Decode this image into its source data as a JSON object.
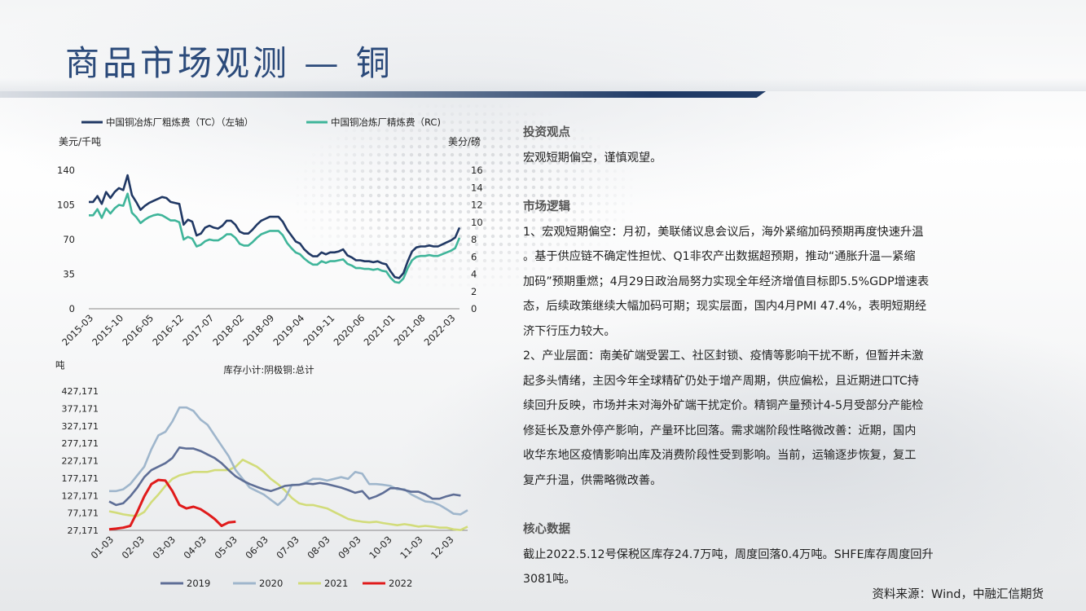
{
  "page": {
    "title": "商品市场观测 — 铜",
    "source": "资料来源：Wind，中融汇信期货"
  },
  "colors": {
    "title": "#2b4a7a",
    "tc": "#203864",
    "rc": "#3fb59a",
    "y2019": "#5e6e96",
    "y2020": "#9fb6cc",
    "y2021": "#d2dc7a",
    "y2022": "#e01b1b"
  },
  "panel": {
    "view_heading": "投资观点",
    "view_text": "宏观短期偏空，谨慎观望。",
    "logic_heading": "市场逻辑",
    "logic_lines": [
      "1、宏观短期偏空：月初，美联储议息会议后，海外紧缩加码预期再度快速升温",
      "。基于供应链不确定性担忧、Q1非农产出数据超预期，推动“通胀升温—紧缩",
      "加码”预期重燃；4月29日政治局努力实现全年经济增值目标即5.5%GDP增速表",
      "态，后续政策继续大幅加码可期；现实层面，国内4月PMI 47.4%，表明短期经",
      "济下行压力较大。",
      "2、产业层面：南美矿端受罢工、社区封锁、疫情等影响干扰不断，但暂并未激",
      "起多头情绪，主因今年全球精矿仍处于增产周期，供应偏松，且近期进口TC持",
      "续回升反映，市场并未对海外矿端干扰定价。精铜产量预计4-5月受部分产能检",
      "修延长及意外停产影响，产量环比回落。需求端阶段性略微改善：近期，国内",
      "收华东地区疫情影响出库及消费阶段性受到影响。当前，运输逐步恢复，复工",
      "复产升温，供需略微改善。"
    ],
    "core_heading": "核心数据",
    "core_lines": [
      "截止2022.5.12号保税区库存24.7万吨，周度回落0.4万吨。SHFE库存周度回升",
      "3081吨。"
    ]
  },
  "chart_data": [
    {
      "type": "line",
      "legend": [
        "中国铜冶炼厂粗炼费（TC）（左轴）",
        "中国铜冶炼厂精炼费（RC)"
      ],
      "ylabel_left": "美元/千吨",
      "ylabel_right": "美分/磅",
      "ylim_left": [
        0,
        140
      ],
      "ylim_right": [
        0,
        16
      ],
      "yticks_left": [
        "0",
        "35",
        "70",
        "105",
        "140"
      ],
      "yticks_right": [
        "0",
        "2",
        "4",
        "6",
        "8",
        "10",
        "12",
        "14",
        "16"
      ],
      "x_ticks": [
        "2015-03",
        "2015-10",
        "2016-05",
        "2016-12",
        "2017-07",
        "2018-02",
        "2018-09",
        "2019-04",
        "2019-11",
        "2020-06",
        "2021-01",
        "2021-08",
        "2022-03"
      ],
      "x_range": [
        0,
        86
      ],
      "series": [
        {
          "name": "中国铜冶炼厂粗炼费（TC）（左轴）",
          "axis": "left",
          "x": [
            0,
            1,
            2,
            3,
            4,
            5,
            6,
            7,
            8,
            9,
            10,
            11,
            12,
            13,
            14,
            15,
            16,
            17,
            18,
            19,
            20,
            21,
            22,
            23,
            24,
            25,
            26,
            27,
            28,
            29,
            30,
            31,
            32,
            33,
            34,
            35,
            36,
            37,
            38,
            39,
            40,
            41,
            42,
            43,
            44,
            45,
            46,
            47,
            48,
            49,
            50,
            51,
            52,
            53,
            54,
            55,
            56,
            57,
            58,
            59,
            60,
            61,
            62,
            63,
            64,
            65,
            66,
            67,
            68,
            69,
            70,
            71,
            72,
            73,
            74,
            75,
            76,
            77,
            78,
            79,
            80,
            81,
            82,
            83,
            84,
            85,
            86
          ],
          "values": [
            108,
            108,
            114,
            106,
            118,
            112,
            118,
            122,
            120,
            135,
            115,
            108,
            100,
            104,
            107,
            109,
            111,
            113,
            112,
            108,
            107,
            106,
            85,
            90,
            88,
            74,
            76,
            82,
            84,
            82,
            81,
            84,
            89,
            89,
            85,
            78,
            76,
            76,
            80,
            85,
            89,
            91,
            93,
            93,
            93,
            88,
            80,
            74,
            68,
            66,
            60,
            56,
            53,
            53,
            57,
            55,
            57,
            57,
            58,
            60,
            54,
            52,
            49,
            49,
            48,
            48,
            47,
            48,
            46,
            45,
            38,
            32,
            31,
            36,
            48,
            58,
            62,
            63,
            63,
            64,
            63,
            63,
            65,
            67,
            69,
            72,
            82
          ]
        },
        {
          "name": "中国铜冶炼厂精炼费（RC)",
          "axis": "right",
          "x": [
            0,
            1,
            2,
            3,
            4,
            5,
            6,
            7,
            8,
            9,
            10,
            11,
            12,
            13,
            14,
            15,
            16,
            17,
            18,
            19,
            20,
            21,
            22,
            23,
            24,
            25,
            26,
            27,
            28,
            29,
            30,
            31,
            32,
            33,
            34,
            35,
            36,
            37,
            38,
            39,
            40,
            41,
            42,
            43,
            44,
            45,
            46,
            47,
            48,
            49,
            50,
            51,
            52,
            53,
            54,
            55,
            56,
            57,
            58,
            59,
            60,
            61,
            62,
            63,
            64,
            65,
            66,
            67,
            68,
            69,
            70,
            71,
            72,
            73,
            74,
            75,
            76,
            77,
            78,
            79,
            80,
            81,
            82,
            83,
            84,
            85,
            86
          ],
          "values": [
            10.8,
            10.8,
            11.5,
            10.5,
            11.6,
            11.0,
            11.6,
            12.0,
            11.9,
            13.3,
            11.1,
            10.6,
            9.9,
            10.3,
            10.6,
            10.8,
            10.9,
            10.8,
            10.5,
            10.2,
            10.2,
            10.0,
            8.0,
            8.3,
            8.1,
            7.2,
            7.4,
            7.8,
            8.0,
            7.9,
            7.9,
            8.2,
            8.6,
            8.6,
            8.2,
            7.5,
            7.3,
            7.3,
            7.7,
            8.2,
            8.6,
            8.8,
            9.0,
            9.0,
            9.0,
            8.5,
            7.6,
            7.0,
            6.5,
            6.3,
            5.8,
            5.4,
            5.1,
            5.1,
            5.5,
            5.3,
            5.5,
            5.5,
            5.6,
            5.7,
            5.2,
            5.0,
            4.7,
            4.7,
            4.6,
            4.6,
            4.5,
            4.6,
            4.4,
            4.3,
            3.6,
            3.1,
            3.0,
            3.5,
            4.7,
            5.6,
            6.0,
            6.1,
            6.1,
            6.2,
            6.1,
            6.1,
            6.3,
            6.5,
            6.7,
            7.0,
            8.2
          ]
        }
      ]
    },
    {
      "type": "line",
      "title": "库存小计:阴极铜:总计",
      "ylabel": "吨",
      "ylim": [
        27171,
        427171
      ],
      "yticks": [
        "27,171",
        "77,171",
        "127,171",
        "177,171",
        "227,171",
        "277,171",
        "327,171",
        "377,171",
        "427,171"
      ],
      "x_ticks": [
        "01-03",
        "02-03",
        "03-03",
        "04-03",
        "05-03",
        "06-03",
        "07-03",
        "08-03",
        "09-03",
        "10-03",
        "11-03",
        "12-03"
      ],
      "x_range": [
        0,
        51
      ],
      "legend": [
        "2019",
        "2020",
        "2021",
        "2022"
      ],
      "series": [
        {
          "name": "2019",
          "x": [
            0,
            1,
            2,
            3,
            4,
            5,
            6,
            7,
            8,
            9,
            10,
            11,
            12,
            13,
            14,
            15,
            16,
            17,
            18,
            19,
            20,
            21,
            22,
            23,
            24,
            25,
            26,
            27,
            28,
            29,
            30,
            31,
            32,
            33,
            34,
            35,
            36,
            37,
            38,
            39,
            40,
            41,
            42,
            43,
            44,
            45,
            46,
            47,
            48,
            49,
            50
          ],
          "values": [
            110000,
            100000,
            105000,
            125000,
            150000,
            180000,
            200000,
            210000,
            220000,
            235000,
            265000,
            262000,
            262000,
            255000,
            245000,
            235000,
            220000,
            200000,
            182000,
            170000,
            160000,
            152000,
            145000,
            140000,
            147000,
            155000,
            157000,
            158000,
            162000,
            160000,
            163000,
            160000,
            155000,
            150000,
            143000,
            135000,
            140000,
            118000,
            125000,
            135000,
            148000,
            148000,
            143000,
            138000,
            138000,
            130000,
            118000,
            118000,
            125000,
            130000,
            127000
          ]
        },
        {
          "name": "2020",
          "x": [
            0,
            1,
            2,
            3,
            4,
            5,
            6,
            7,
            8,
            9,
            10,
            11,
            12,
            13,
            14,
            15,
            16,
            17,
            18,
            19,
            20,
            21,
            22,
            23,
            24,
            25,
            26,
            27,
            28,
            29,
            30,
            31,
            32,
            33,
            34,
            35,
            36,
            37,
            38,
            39,
            40,
            41,
            42,
            43,
            44,
            45,
            46,
            47,
            48,
            49,
            50,
            51
          ],
          "values": [
            140000,
            140000,
            145000,
            160000,
            185000,
            210000,
            260000,
            300000,
            310000,
            340000,
            380000,
            380000,
            370000,
            345000,
            330000,
            300000,
            270000,
            240000,
            200000,
            175000,
            150000,
            140000,
            130000,
            115000,
            100000,
            118000,
            158000,
            158000,
            165000,
            175000,
            175000,
            170000,
            175000,
            180000,
            175000,
            195000,
            190000,
            160000,
            160000,
            158000,
            155000,
            145000,
            145000,
            130000,
            120000,
            110000,
            108000,
            100000,
            88000,
            75000,
            73000,
            85000
          ]
        },
        {
          "name": "2021",
          "x": [
            0,
            1,
            2,
            3,
            4,
            5,
            6,
            7,
            8,
            9,
            10,
            11,
            12,
            13,
            14,
            15,
            16,
            17,
            18,
            19,
            20,
            21,
            22,
            23,
            24,
            25,
            26,
            27,
            28,
            29,
            30,
            31,
            32,
            33,
            34,
            35,
            36,
            37,
            38,
            39,
            40,
            41,
            42,
            43,
            44,
            45,
            46,
            47,
            48,
            49,
            50,
            51
          ],
          "values": [
            82000,
            78000,
            73000,
            70000,
            68000,
            80000,
            108000,
            130000,
            155000,
            175000,
            185000,
            190000,
            195000,
            195000,
            195000,
            200000,
            200000,
            200000,
            210000,
            230000,
            220000,
            210000,
            195000,
            175000,
            160000,
            142000,
            120000,
            105000,
            100000,
            100000,
            95000,
            90000,
            80000,
            70000,
            60000,
            55000,
            52000,
            50000,
            52000,
            48000,
            45000,
            42000,
            45000,
            42000,
            38000,
            40000,
            38000,
            35000,
            35000,
            30000,
            28000,
            38000
          ]
        },
        {
          "name": "2022",
          "x": [
            0,
            1,
            2,
            3,
            4,
            5,
            6,
            7,
            8,
            9,
            10,
            11,
            12,
            13,
            14,
            15,
            16,
            17,
            18
          ],
          "values": [
            30000,
            32000,
            35000,
            40000,
            80000,
            125000,
            160000,
            172000,
            170000,
            140000,
            100000,
            90000,
            95000,
            88000,
            75000,
            60000,
            40000,
            50000,
            52000
          ]
        }
      ]
    }
  ]
}
